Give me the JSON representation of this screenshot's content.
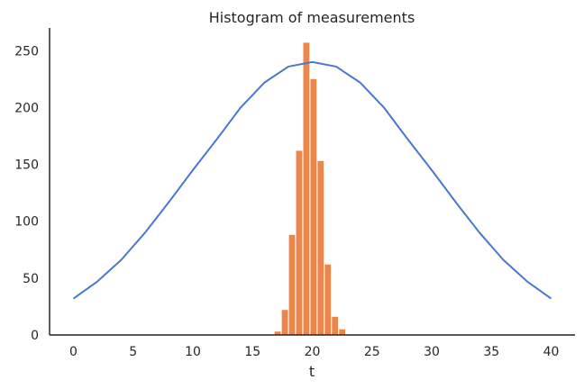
{
  "chart_data": {
    "type": "bar",
    "title": "Histogram of measurements",
    "xlabel": "t",
    "ylabel": "",
    "xlim": [
      -2,
      42
    ],
    "ylim": [
      0,
      270
    ],
    "xticks": [
      0,
      5,
      10,
      15,
      20,
      25,
      30,
      35,
      40
    ],
    "yticks": [
      0,
      50,
      100,
      150,
      200,
      250
    ],
    "grid": false,
    "series": [
      {
        "kind": "bar",
        "color": "#ee854a",
        "bin_width": 0.6,
        "x": [
          16.8,
          17.4,
          18.0,
          18.6,
          19.2,
          19.8,
          20.4,
          21.0,
          21.6,
          22.2
        ],
        "values": [
          3,
          22,
          88,
          162,
          257,
          225,
          153,
          62,
          16,
          5
        ]
      },
      {
        "kind": "line",
        "color": "#4878d0",
        "x": [
          0,
          2,
          4,
          6,
          8,
          10,
          12,
          14,
          16,
          18,
          20,
          22,
          24,
          26,
          28,
          30,
          32,
          34,
          36,
          38,
          40
        ],
        "values": [
          32,
          47,
          66,
          90,
          117,
          145,
          172,
          200,
          222,
          236,
          240,
          236,
          222,
          200,
          172,
          145,
          117,
          90,
          66,
          47,
          32
        ]
      }
    ]
  }
}
